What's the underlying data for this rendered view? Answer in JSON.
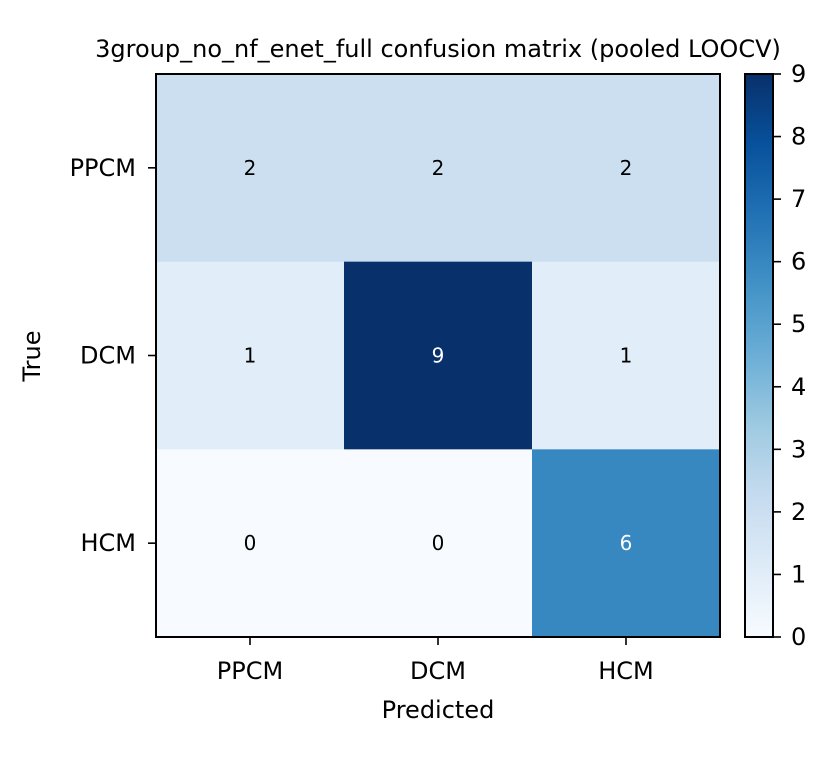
{
  "chart_data": {
    "type": "heatmap",
    "title": "3group_no_nf_enet_full confusion matrix (pooled LOOCV)",
    "xlabel": "Predicted",
    "ylabel": "True",
    "x_categories": [
      "PPCM",
      "DCM",
      "HCM"
    ],
    "y_categories": [
      "PPCM",
      "DCM",
      "HCM"
    ],
    "values": [
      [
        2,
        2,
        2
      ],
      [
        1,
        9,
        1
      ],
      [
        0,
        0,
        6
      ]
    ],
    "colormap": "Blues",
    "colorbar": {
      "min": 0,
      "max": 9,
      "ticks": [
        "0",
        "1",
        "2",
        "3",
        "4",
        "5",
        "6",
        "7",
        "8",
        "9"
      ]
    },
    "grid": false
  }
}
